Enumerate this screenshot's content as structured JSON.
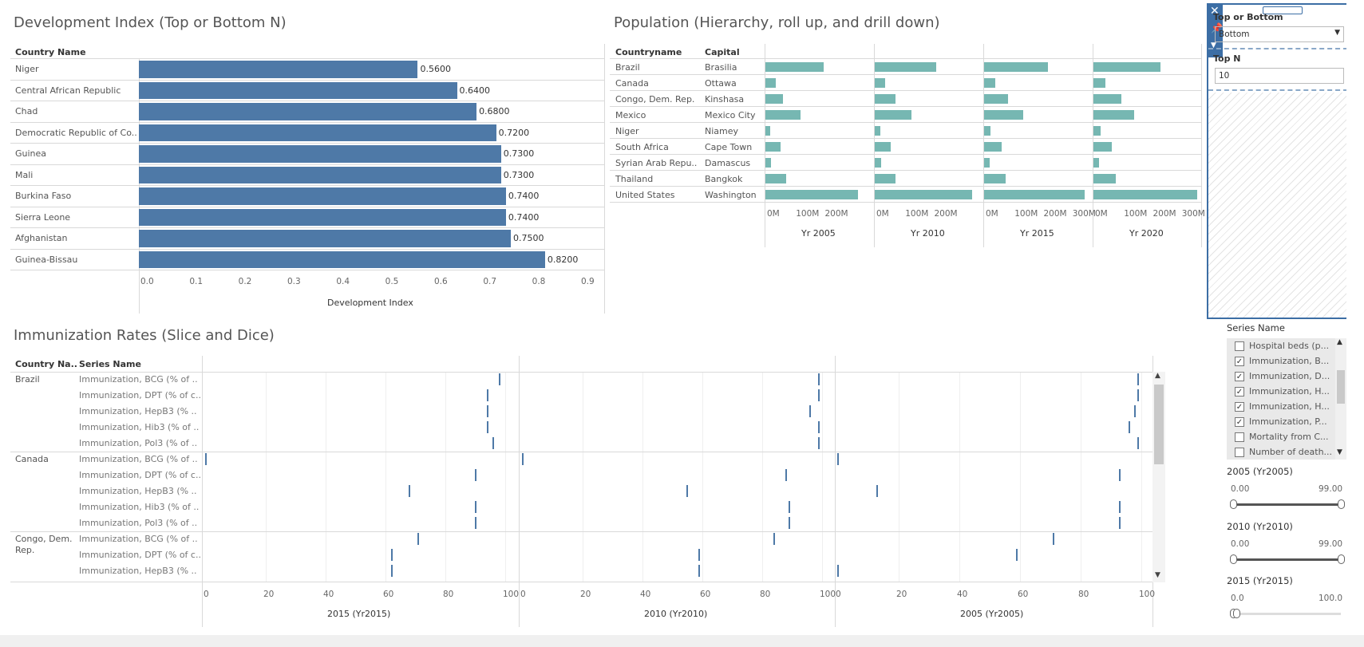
{
  "dev": {
    "title": "Development Index (Top or Bottom N)",
    "col_header": "Country Name",
    "axis_title": "Development Index",
    "axis_ticks": [
      "0.0",
      "0.1",
      "0.2",
      "0.3",
      "0.4",
      "0.5",
      "0.6",
      "0.7",
      "0.8",
      "0.9"
    ]
  },
  "pop": {
    "title": "Population (Hierarchy, roll up, and drill down)",
    "col_country": "Countryname",
    "col_capital": "Capital",
    "rows": [
      {
        "country": "Brazil",
        "capital": "Brasilia"
      },
      {
        "country": "Canada",
        "capital": "Ottawa"
      },
      {
        "country": "Congo, Dem. Rep.",
        "capital": "Kinshasa"
      },
      {
        "country": "Mexico",
        "capital": "Mexico City"
      },
      {
        "country": "Niger",
        "capital": "Niamey"
      },
      {
        "country": "South Africa",
        "capital": "Cape Town"
      },
      {
        "country": "Syrian Arab Repu..",
        "capital": "Damascus"
      },
      {
        "country": "Thailand",
        "capital": "Bangkok"
      },
      {
        "country": "United States",
        "capital": "Washington"
      }
    ],
    "panels": [
      "Yr 2005",
      "Yr 2010",
      "Yr 2015",
      "Yr 2020"
    ],
    "ticks_short": [
      "0M",
      "100M",
      "200M"
    ],
    "ticks_long": [
      "0M",
      "100M",
      "200M",
      "300M"
    ]
  },
  "imm": {
    "title": "Immunization Rates (Slice and Dice)",
    "col_country": "Country Na..",
    "col_series": "Series Name",
    "groups": [
      {
        "country": "Brazil",
        "series": [
          "Immunization, BCG (% of ..",
          "Immunization, DPT (% of c..",
          "Immunization, HepB3 (% ..",
          "Immunization, Hib3 (% of ..",
          "Immunization, Pol3 (% of .."
        ]
      },
      {
        "country": "Canada",
        "series": [
          "Immunization, BCG (% of ..",
          "Immunization, DPT (% of c..",
          "Immunization, HepB3 (% ..",
          "Immunization, Hib3 (% of ..",
          "Immunization, Pol3 (% of .."
        ]
      },
      {
        "country": "Congo, Dem.",
        "country2": "Rep.",
        "series": [
          "Immunization, BCG (% of ..",
          "Immunization, DPT (% of c..",
          "Immunization, HepB3 (% .."
        ]
      }
    ],
    "panels": [
      "2015 (Yr2015)",
      "2010 (Yr2010)",
      "2005 (Yr2005)"
    ],
    "axis_ticks": [
      "0",
      "20",
      "40",
      "60",
      "80",
      "100"
    ]
  },
  "filters": {
    "topbottom_label": "Top or Bottom",
    "topbottom_value": "Bottom",
    "topn_label": "Top N",
    "topn_value": "10",
    "series_label": "Series Name",
    "series_items": [
      {
        "label": "Hospital beds (p...",
        "checked": false
      },
      {
        "label": "Immunization, B...",
        "checked": true
      },
      {
        "label": "Immunization, D...",
        "checked": true
      },
      {
        "label": "Immunization, H...",
        "checked": true
      },
      {
        "label": "Immunization, H...",
        "checked": true
      },
      {
        "label": "Immunization, P...",
        "checked": true
      },
      {
        "label": "Mortality from C...",
        "checked": false
      },
      {
        "label": "Number of death...",
        "checked": false
      }
    ],
    "sliders": [
      {
        "label": "2005 (Yr2005)",
        "min": "0.00",
        "max": "99.00",
        "lo": 0,
        "hi": 1
      },
      {
        "label": "2010 (Yr2010)",
        "min": "0.00",
        "max": "99.00",
        "lo": 0,
        "hi": 1
      },
      {
        "label": "2015 (Yr2015)",
        "min": "0.0",
        "max": "100.0",
        "lo": 0,
        "hi": 0.03
      }
    ]
  },
  "colors": {
    "bar": "#4e79a7",
    "pop": "#76b7b2",
    "panel_border": "#3c6ea5"
  },
  "chart_data": [
    {
      "type": "bar",
      "title": "Development Index (Top or Bottom N)",
      "xlabel": "Development Index",
      "categories": [
        "Niger",
        "Central African Republic",
        "Chad",
        "Democratic Republic of Co..",
        "Guinea",
        "Mali",
        "Burkina Faso",
        "Sierra Leone",
        "Afghanistan",
        "Guinea-Bissau"
      ],
      "values": [
        0.56,
        0.64,
        0.68,
        0.72,
        0.73,
        0.73,
        0.74,
        0.74,
        0.75,
        0.82
      ],
      "labels": [
        "0.5600",
        "0.6400",
        "0.6800",
        "0.7200",
        "0.7300",
        "0.7300",
        "0.7400",
        "0.7400",
        "0.7500",
        "0.8200"
      ],
      "xlim": [
        0,
        0.9
      ]
    },
    {
      "type": "bar",
      "title": "Population (Hierarchy, roll up, and drill down)",
      "categories": [
        "Brazil",
        "Canada",
        "Congo, Dem. Rep.",
        "Mexico",
        "Niger",
        "South Africa",
        "Syrian Arab Repu..",
        "Thailand",
        "United States"
      ],
      "series": [
        {
          "name": "Yr 2005",
          "values": [
            186,
            32,
            57,
            112,
            14,
            47,
            19,
            66,
            295
          ]
        },
        {
          "name": "Yr 2010",
          "values": [
            196,
            34,
            66,
            118,
            17,
            51,
            21,
            67,
            309
          ]
        },
        {
          "name": "Yr 2015",
          "values": [
            204,
            36,
            77,
            125,
            20,
            55,
            18,
            68,
            321
          ]
        },
        {
          "name": "Yr 2020",
          "values": [
            213,
            38,
            90,
            129,
            24,
            59,
            18,
            70,
            331
          ]
        }
      ],
      "xlim": [
        0,
        330
      ]
    },
    {
      "type": "scatter",
      "title": "Immunization Rates (Slice and Dice)",
      "xlim": [
        0,
        100
      ],
      "rows": [
        "Brazil BCG",
        "Brazil DPT",
        "Brazil HepB3",
        "Brazil Hib3",
        "Brazil Pol3",
        "Canada BCG",
        "Canada DPT",
        "Canada HepB3",
        "Canada Hib3",
        "Canada Pol3",
        "Congo BCG",
        "Congo DPT",
        "Congo HepB3"
      ],
      "series": [
        {
          "name": "2015 (Yr2015)",
          "values": [
            98,
            94,
            94,
            94,
            96,
            0,
            90,
            68,
            90,
            90,
            71,
            62,
            62
          ]
        },
        {
          "name": "2010 (Yr2010)",
          "values": [
            99,
            99,
            96,
            99,
            99,
            0,
            88,
            55,
            89,
            89,
            84,
            59,
            59
          ]
        },
        {
          "name": "2005 (Yr2005)",
          "values": [
            99,
            99,
            98,
            96,
            99,
            0,
            93,
            13,
            93,
            93,
            71,
            59,
            0
          ]
        }
      ]
    }
  ]
}
